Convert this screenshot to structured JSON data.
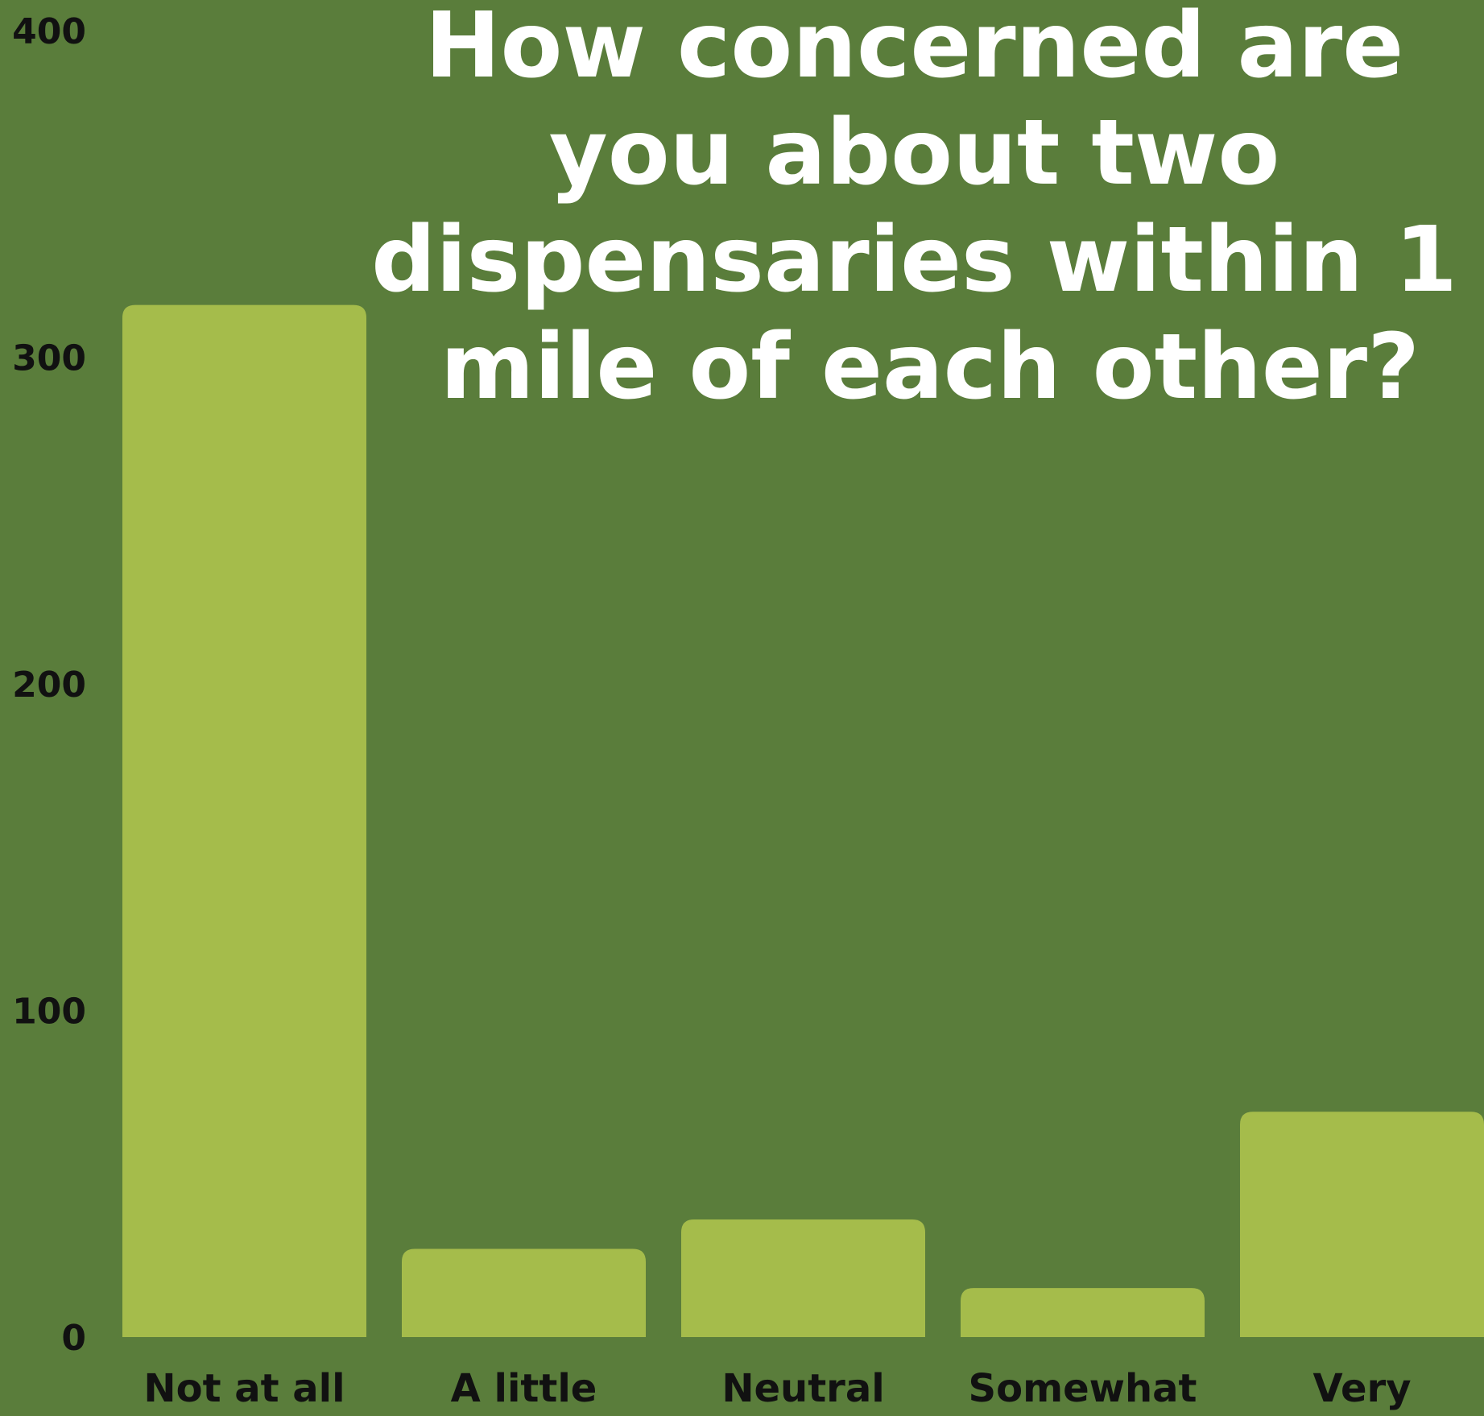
{
  "chart_data": {
    "type": "bar",
    "title_lines": [
      "How concerned are",
      "you about two",
      "dispensaries within 1",
      "mile of each other?"
    ],
    "categories": [
      "Not at all",
      "A little",
      "Neutral",
      "Somewhat",
      "Very"
    ],
    "values": [
      316,
      27,
      36,
      15,
      69
    ],
    "yticks": [
      "0",
      "100",
      "200",
      "300",
      "400"
    ],
    "ylim": [
      0,
      400
    ],
    "xlabel": "",
    "ylabel": "",
    "grid": false,
    "colors": {
      "background": "#5a7d3b",
      "bar": "#a5bc4b",
      "title": "#ffffff",
      "labels": "#111111"
    }
  }
}
